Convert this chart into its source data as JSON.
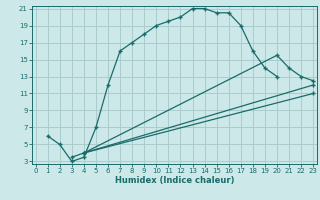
{
  "xlabel": "Humidex (Indice chaleur)",
  "bg_color": "#cce8e8",
  "grid_color": "#aacccc",
  "line_color": "#1a6b6b",
  "xlim": [
    0,
    23
  ],
  "ylim": [
    3,
    21
  ],
  "xticks": [
    0,
    1,
    2,
    3,
    4,
    5,
    6,
    7,
    8,
    9,
    10,
    11,
    12,
    13,
    14,
    15,
    16,
    17,
    18,
    19,
    20,
    21,
    22,
    23
  ],
  "yticks": [
    3,
    5,
    7,
    9,
    11,
    13,
    15,
    17,
    19,
    21
  ],
  "line1_x": [
    1,
    2,
    3,
    4,
    5,
    6,
    7,
    8,
    9,
    10,
    11,
    12,
    13,
    14,
    15,
    16,
    17,
    18,
    19,
    20
  ],
  "line1_y": [
    6,
    5,
    3,
    3.5,
    7,
    12,
    16,
    17,
    18,
    19,
    19.5,
    20,
    21,
    21,
    20.5,
    20.5,
    19,
    16,
    14,
    13
  ],
  "line2_x": [
    3,
    4,
    20,
    21,
    22,
    23
  ],
  "line2_y": [
    3.5,
    4,
    15.5,
    14,
    13,
    12.5
  ],
  "line3_x": [
    4,
    23
  ],
  "line3_y": [
    4,
    12
  ],
  "line4_x": [
    4,
    23
  ],
  "line4_y": [
    4,
    11
  ]
}
